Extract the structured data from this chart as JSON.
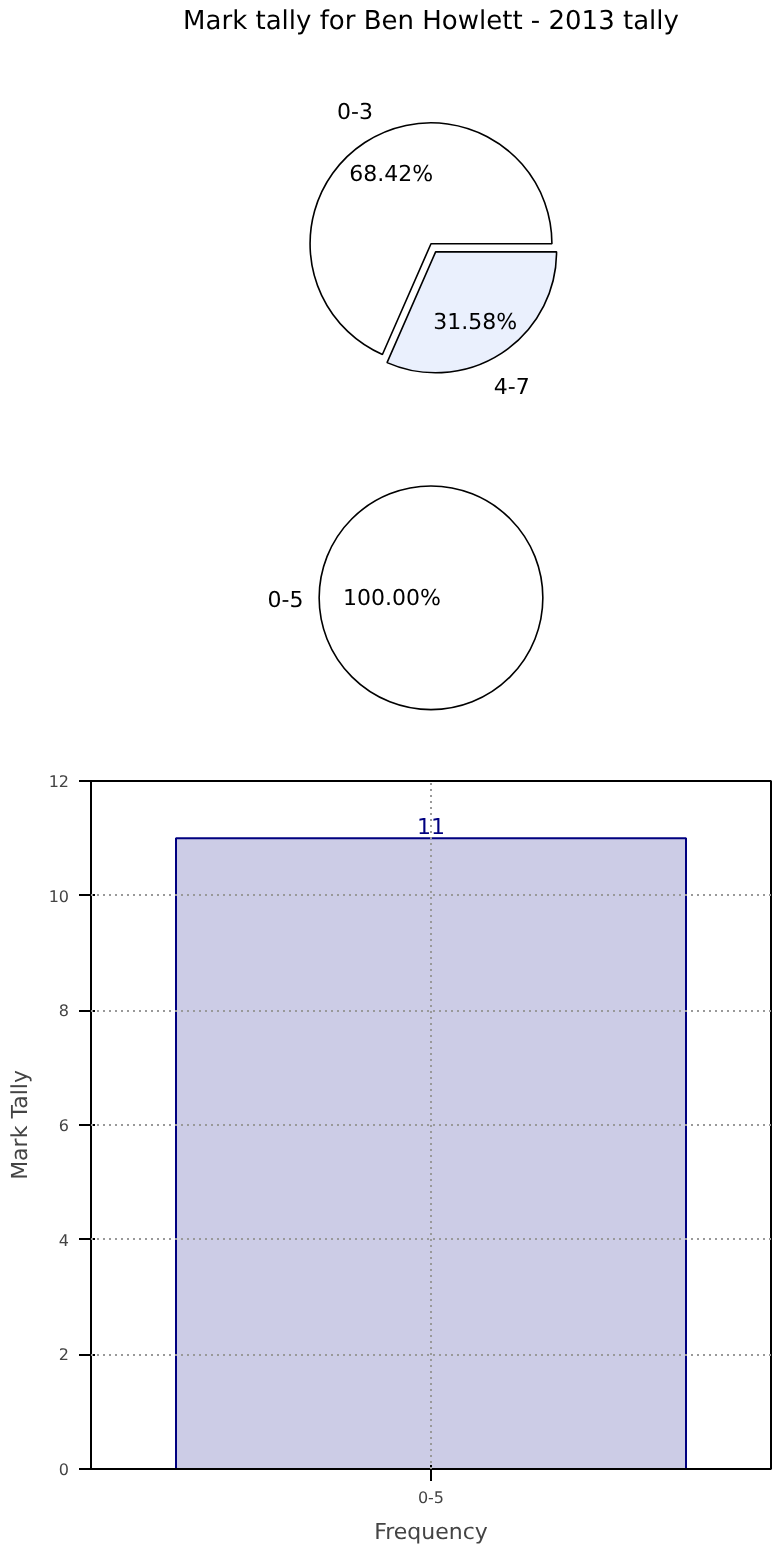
{
  "chart_data": [
    {
      "type": "pie",
      "title": "Mark tally for Ben Howlett - 2013 tally",
      "categories": [
        "0-3",
        "4-7"
      ],
      "values": [
        68.42,
        31.58
      ],
      "colors": [
        "#ffffff",
        "#eaf0fd"
      ],
      "value_labels": [
        "68.42%",
        "31.58%"
      ]
    },
    {
      "type": "pie",
      "categories": [
        "0-5"
      ],
      "values": [
        100
      ],
      "colors": [
        "#ffffff"
      ],
      "value_labels": [
        "100.00%"
      ]
    },
    {
      "type": "bar",
      "categories": [
        "0-5"
      ],
      "values": [
        11
      ],
      "color": "#cccce6",
      "ylim": [
        0,
        12
      ],
      "yticks": [
        0,
        2,
        4,
        6,
        8,
        10,
        12
      ],
      "grid": true,
      "xlabel": "Frequency",
      "ylabel": "Mark Tally",
      "data_labels": true
    }
  ]
}
